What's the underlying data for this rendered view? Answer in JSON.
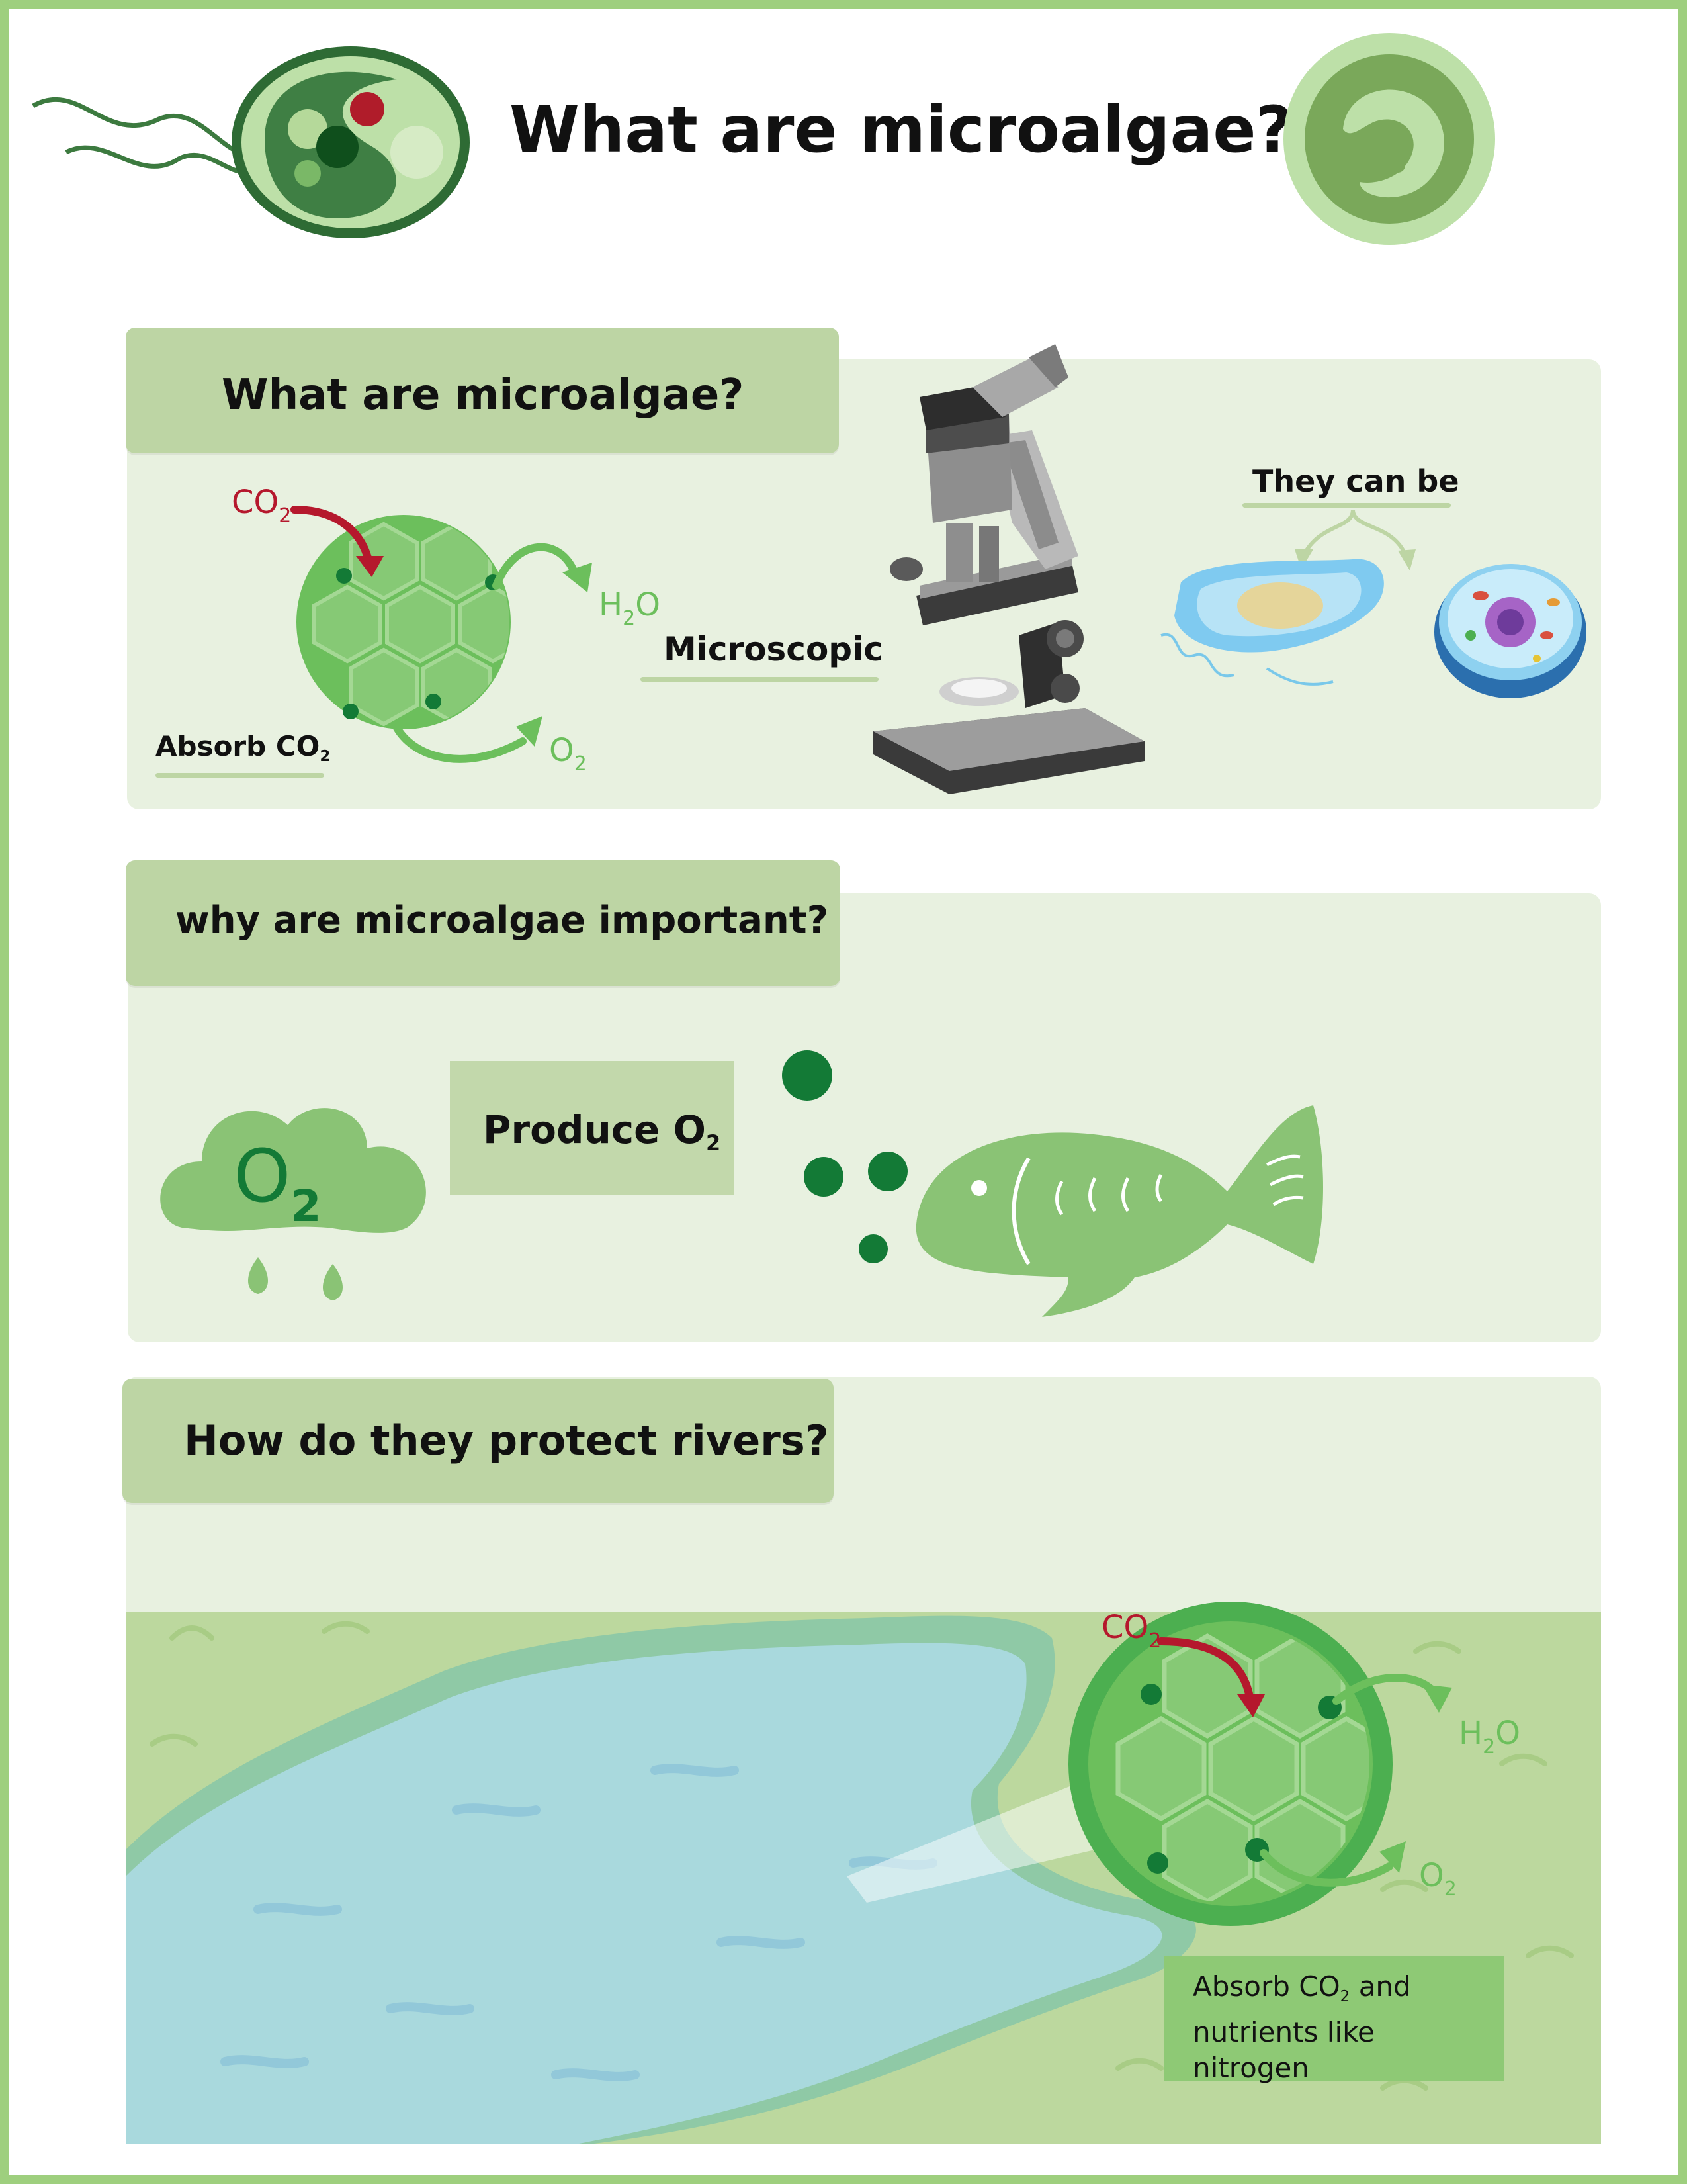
{
  "header": {
    "title": "What are microalgae?"
  },
  "section1": {
    "heading": "What are microalgae?",
    "absorb_label": "Absorb CO",
    "absorb_sub": "2",
    "microscopic_label": "Microscopic",
    "they_can_be_label": "They can be",
    "cell_co2": "CO",
    "cell_co2_sub": "2",
    "cell_h2o_h": "H",
    "cell_h2o_sub": "2",
    "cell_h2o_o": "O",
    "cell_o2": "O",
    "cell_o2_sub": "2"
  },
  "section2": {
    "heading": "why are microalgae important?",
    "produce_label": "Produce O",
    "produce_sub": "2",
    "cloud_o": "O",
    "cloud_sub": "2"
  },
  "section3": {
    "heading": "How do they protect rivers?",
    "absorb_line1_a": "Absorb CO",
    "absorb_line1_sub": "2",
    "absorb_line1_b": " and",
    "absorb_line2": "nutrients like",
    "absorb_line3": "nitrogen",
    "cell_co2": "CO",
    "cell_co2_sub": "2",
    "cell_h2o_h": "H",
    "cell_h2o_sub": "2",
    "cell_h2o_o": "O",
    "cell_o2": "O",
    "cell_o2_sub": "2"
  },
  "colors": {
    "frame": "#9ecf7e",
    "panel": "#e8f1e0",
    "tab": "#bdd5a4",
    "cell_green": "#6cbf5c",
    "dark_green": "#137a36",
    "co2_red": "#b5182d",
    "water": "#a9d9dd",
    "land": "#bcd89e"
  }
}
